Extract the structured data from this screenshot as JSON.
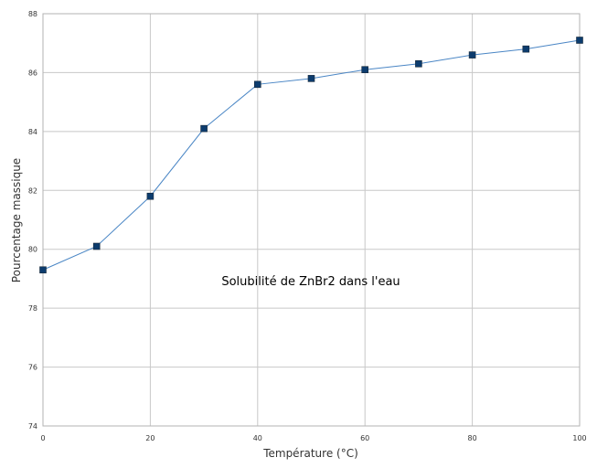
{
  "chart_data": {
    "type": "line",
    "title": "Solubilité de ZnBr2 dans l'eau",
    "xlabel": "Température (°C)",
    "ylabel": "Pourcentage massique",
    "xlim": [
      0,
      100
    ],
    "ylim": [
      74,
      88
    ],
    "xticks": [
      0,
      20,
      40,
      60,
      80,
      100
    ],
    "yticks": [
      74,
      76,
      78,
      80,
      82,
      84,
      86,
      88
    ],
    "grid": true,
    "legend": "none",
    "series": [
      {
        "x": [
          0,
          10,
          20,
          30,
          40,
          50,
          60,
          70,
          80,
          90,
          100
        ],
        "y": [
          79.3,
          80.1,
          81.8,
          84.1,
          85.6,
          85.8,
          86.1,
          86.3,
          86.6,
          86.8,
          87.1
        ],
        "line_color": "#4a86c5",
        "marker_color": "#0c3c6e",
        "marker": "square"
      }
    ]
  }
}
